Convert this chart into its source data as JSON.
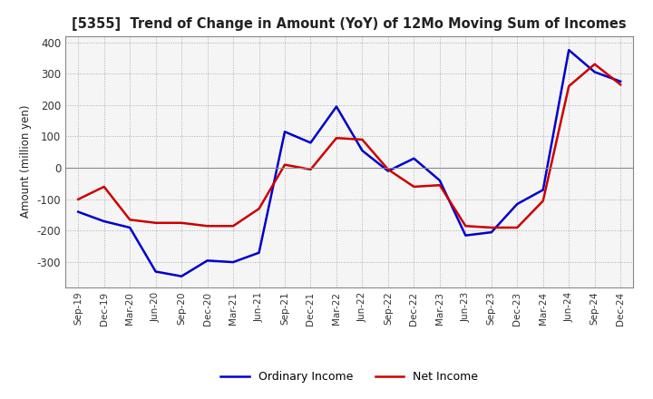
{
  "title": "[5355]  Trend of Change in Amount (YoY) of 12Mo Moving Sum of Incomes",
  "ylabel": "Amount (million yen)",
  "background_color": "#ffffff",
  "plot_bg_color": "#f5f5f5",
  "grid_color": "#aaaaaa",
  "xlabels": [
    "Sep-19",
    "Dec-19",
    "Mar-20",
    "Jun-20",
    "Sep-20",
    "Dec-20",
    "Mar-21",
    "Jun-21",
    "Sep-21",
    "Dec-21",
    "Mar-22",
    "Jun-22",
    "Sep-22",
    "Dec-22",
    "Mar-23",
    "Jun-23",
    "Sep-23",
    "Dec-23",
    "Mar-24",
    "Jun-24",
    "Sep-24",
    "Dec-24"
  ],
  "ordinary_income": [
    -140,
    -170,
    -190,
    -330,
    -345,
    -295,
    -300,
    -270,
    115,
    80,
    195,
    55,
    -10,
    30,
    -40,
    -215,
    -205,
    -115,
    -70,
    375,
    305,
    275
  ],
  "net_income": [
    -100,
    -60,
    -165,
    -175,
    -175,
    -185,
    -185,
    -130,
    10,
    -5,
    95,
    90,
    -5,
    -60,
    -55,
    -185,
    -190,
    -190,
    -105,
    260,
    330,
    265
  ],
  "ordinary_color": "#0000cc",
  "net_color": "#cc0000",
  "ylim": [
    -380,
    420
  ],
  "yticks": [
    -300,
    -200,
    -100,
    0,
    100,
    200,
    300,
    400
  ]
}
